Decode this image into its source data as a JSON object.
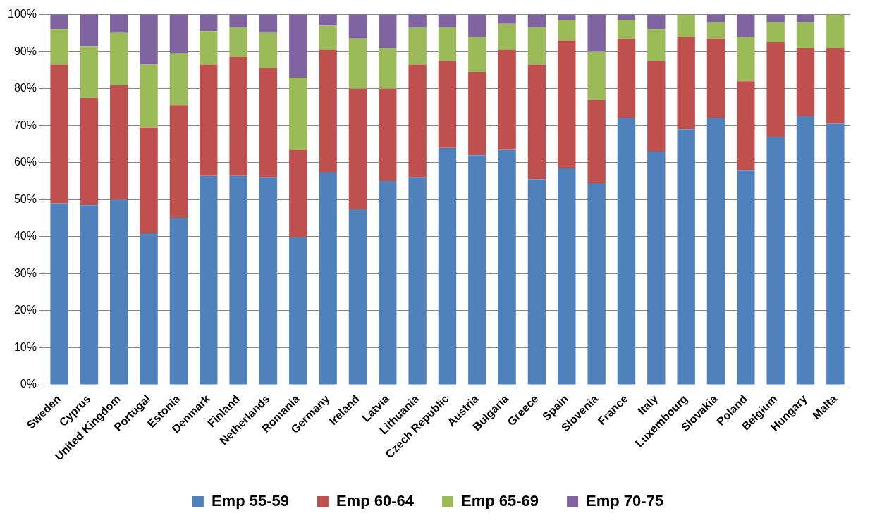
{
  "chart_data": {
    "type": "bar",
    "stacked": true,
    "categories": [
      "Sweden",
      "Cyprus",
      "United Kingdom",
      "Portugal",
      "Estonia",
      "Denmark",
      "Finland",
      "Netherlands",
      "Romania",
      "Germany",
      "Ireland",
      "Latvia",
      "Lithuania",
      "Czech Republic",
      "Austria",
      "Bulgaria",
      "Greece",
      "Spain",
      "Slovenia",
      "France",
      "Italy",
      "Luxembourg",
      "Slovakia",
      "Poland",
      "Belgium",
      "Hungary",
      "Malta"
    ],
    "series": [
      {
        "name": "Emp 55-59",
        "color": "#4f81bd",
        "values": [
          49,
          48.5,
          50,
          41,
          45,
          56.5,
          56.5,
          56,
          40,
          57.5,
          47.5,
          55,
          56,
          64,
          62,
          63.5,
          55.5,
          58.5,
          54.5,
          72,
          63,
          69,
          72,
          58,
          67,
          72.5,
          70.5
        ]
      },
      {
        "name": "Emp 60-64",
        "color": "#c0504d",
        "values": [
          37.5,
          29,
          31,
          28.5,
          30.5,
          30,
          32,
          29.5,
          23.5,
          33,
          32.5,
          25,
          30.5,
          23.5,
          22.5,
          27,
          31,
          34.5,
          22.5,
          21.5,
          24.5,
          25,
          21.5,
          24,
          25.5,
          18.5,
          20.5
        ]
      },
      {
        "name": "Emp 65-69",
        "color": "#9bbb59",
        "values": [
          9.5,
          14,
          14,
          17,
          14,
          9,
          8,
          9.5,
          19.5,
          6.5,
          13.5,
          11,
          10,
          9,
          9.5,
          7,
          10,
          5.5,
          13,
          5,
          8.5,
          6,
          4.5,
          12,
          5.5,
          7,
          9
        ]
      },
      {
        "name": "Emp 70-75",
        "color": "#8064a2",
        "values": [
          4,
          8.5,
          5,
          13.5,
          10.5,
          4.5,
          3.5,
          5,
          17,
          3,
          6.5,
          9,
          3.5,
          3.5,
          6,
          2.5,
          3.5,
          1.5,
          10,
          1.5,
          4,
          0,
          2,
          6,
          2,
          2,
          0
        ]
      }
    ],
    "ylim": [
      0,
      100
    ],
    "yticks": [
      {
        "value": 0,
        "label": "0%"
      },
      {
        "value": 10,
        "label": "10%"
      },
      {
        "value": 20,
        "label": "20%"
      },
      {
        "value": 30,
        "label": "30%"
      },
      {
        "value": 40,
        "label": "40%"
      },
      {
        "value": 50,
        "label": "50%"
      },
      {
        "value": 60,
        "label": "60%"
      },
      {
        "value": 70,
        "label": "70%"
      },
      {
        "value": 80,
        "label": "80%"
      },
      {
        "value": 90,
        "label": "90%"
      },
      {
        "value": 100,
        "label": "100%"
      }
    ],
    "grid": "y",
    "legend": "bottom"
  }
}
